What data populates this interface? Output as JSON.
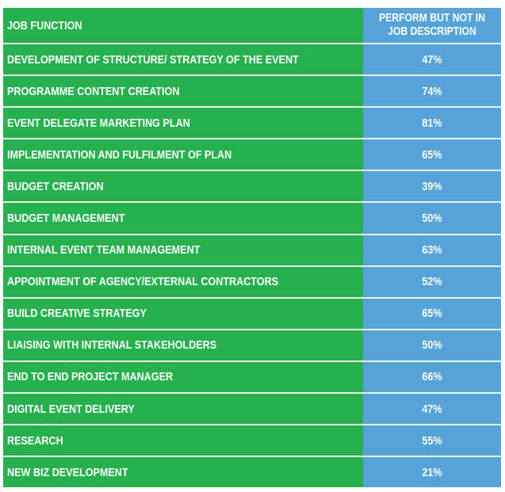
{
  "table": {
    "headers": [
      "JOB FUNCTION",
      "PERFORM BUT NOT IN JOB DESCRIPTION"
    ],
    "rows": [
      {
        "function": "DEVELOPMENT OF STRUCTURE/ STRATEGY OF THE EVENT",
        "value": "47%"
      },
      {
        "function": "PROGRAMME CONTENT CREATION",
        "value": "74%"
      },
      {
        "function": "EVENT DELEGATE MARKETING PLAN",
        "value": "81%"
      },
      {
        "function": "IMPLEMENTATION AND FULFILMENT OF PLAN",
        "value": "65%"
      },
      {
        "function": "BUDGET CREATION",
        "value": "39%"
      },
      {
        "function": "BUDGET MANAGEMENT",
        "value": "50%"
      },
      {
        "function": "INTERNAL EVENT TEAM MANAGEMENT",
        "value": "63%"
      },
      {
        "function": "APPOINTMENT OF AGENCY/EXTERNAL CONTRACTORS",
        "value": "52%"
      },
      {
        "function": "BUILD CREATIVE STRATEGY",
        "value": "65%"
      },
      {
        "function": "LIAISING WITH INTERNAL STAKEHOLDERS",
        "value": "50%"
      },
      {
        "function": "END TO END PROJECT MANAGER",
        "value": "66%"
      },
      {
        "function": "DIGITAL EVENT DELIVERY",
        "value": "47%"
      },
      {
        "function": "RESEARCH",
        "value": "55%"
      },
      {
        "function": "NEW BIZ DEVELOPMENT",
        "value": "21%"
      }
    ]
  },
  "colors": {
    "function_column": "#27b04e",
    "value_column": "#55a3d8",
    "text": "#ffffff"
  }
}
